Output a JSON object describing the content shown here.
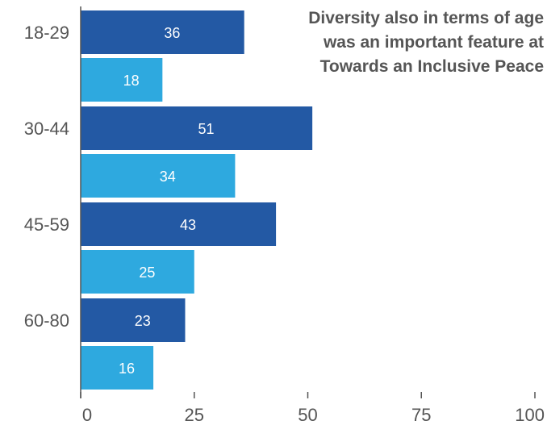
{
  "chart_data": {
    "type": "bar",
    "orientation": "horizontal",
    "categories": [
      "18-29",
      "30-44",
      "45-59",
      "60-80"
    ],
    "series": [
      {
        "values": [
          36,
          51,
          43,
          23
        ],
        "color": "#2359a4"
      },
      {
        "values": [
          18,
          34,
          25,
          16
        ],
        "color": "#2ea9df"
      }
    ],
    "xlim": [
      0,
      100
    ],
    "xticks": [
      0,
      25,
      50,
      75,
      100
    ],
    "grid": false,
    "annotation": "Diversity also in terms of age was an important feature at Towards an Inclusive Peace"
  }
}
